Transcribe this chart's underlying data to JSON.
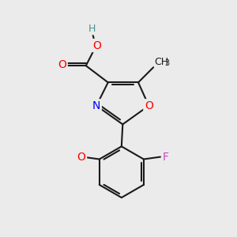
{
  "background_color": "#ebebeb",
  "bond_color": "#1a1a1a",
  "bond_width": 1.5,
  "atom_colors": {
    "O": "#ff0000",
    "N": "#0000ff",
    "F": "#cc44cc",
    "C": "#1a1a1a",
    "H": "#4a9090"
  },
  "font_size": 9,
  "figsize": [
    3.0,
    3.0
  ],
  "dpi": 100
}
